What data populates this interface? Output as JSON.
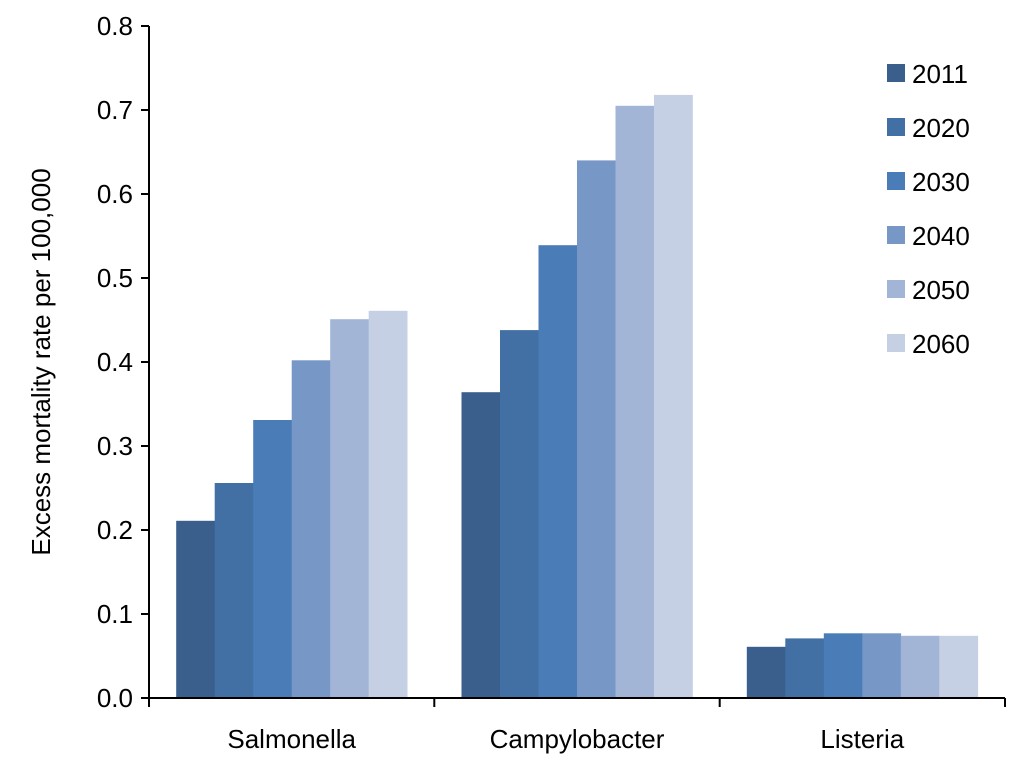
{
  "chart_data": {
    "type": "bar",
    "title": "",
    "xlabel": "",
    "ylabel": "Excess mortality rate per 100,000",
    "ylim": [
      0,
      0.8
    ],
    "yticks": [
      0.0,
      0.1,
      0.2,
      0.3,
      0.4,
      0.5,
      0.6,
      0.7,
      0.8
    ],
    "ytick_labels": [
      "0.0",
      "0.1",
      "0.2",
      "0.3",
      "0.4",
      "0.5",
      "0.6",
      "0.7",
      "0.8"
    ],
    "grid": false,
    "legend_position": "top-right",
    "categories": [
      "Salmonella",
      "Campylobacter",
      "Listeria"
    ],
    "series": [
      {
        "name": "2011",
        "color": "#3a5f8c",
        "values": [
          0.211,
          0.364,
          0.061
        ]
      },
      {
        "name": "2020",
        "color": "#4270a4",
        "values": [
          0.256,
          0.438,
          0.071
        ]
      },
      {
        "name": "2030",
        "color": "#4a7db7",
        "values": [
          0.331,
          0.539,
          0.077
        ]
      },
      {
        "name": "2040",
        "color": "#7797c7",
        "values": [
          0.402,
          0.64,
          0.077
        ]
      },
      {
        "name": "2050",
        "color": "#a3b5d6",
        "values": [
          0.451,
          0.705,
          0.074
        ]
      },
      {
        "name": "2060",
        "color": "#c5d0e4",
        "values": [
          0.461,
          0.718,
          0.074
        ]
      }
    ]
  }
}
